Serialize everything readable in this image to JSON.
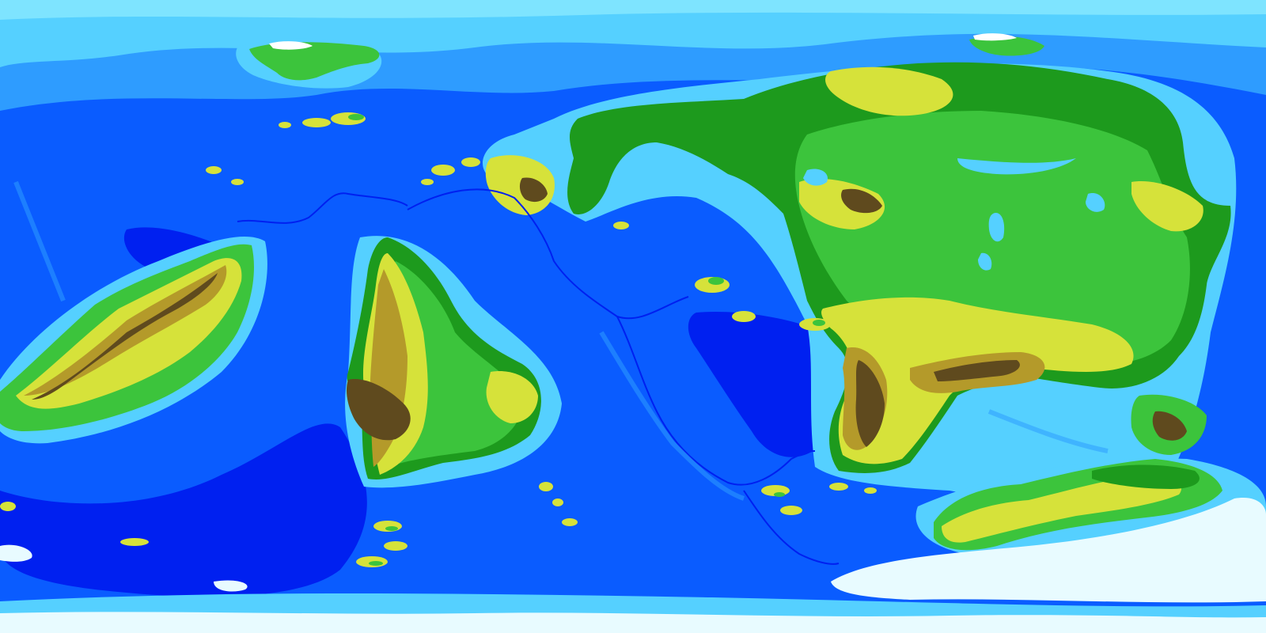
{
  "map": {
    "projection": "equirectangular",
    "type": "fictional world elevation map",
    "labels": []
  },
  "palette": {
    "deep_ocean": "#0020f0",
    "ocean": "#0a5cff",
    "shelf": "#2e9cff",
    "shallow": "#55d0ff",
    "ice_shelf": "#7ee4ff",
    "ice": "#e8fbff",
    "lowland": "#1d9a1d",
    "plain": "#3cc43c",
    "hill": "#d6e23a",
    "highland": "#b49a2a",
    "mountain": "#5f4a1e",
    "snow": "#ffffff"
  }
}
